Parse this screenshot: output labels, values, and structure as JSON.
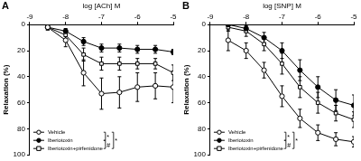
{
  "chart_data": [
    {
      "type": "line",
      "title": "A",
      "x_label": "log [ACh] M",
      "y_label": "Relaxation (%)",
      "x": [
        -8.5,
        -8,
        -7.5,
        -7,
        -6.5,
        -6,
        -5.5,
        -5
      ],
      "xlim": [
        -9,
        -5
      ],
      "xticks": [
        -9,
        -8,
        -7,
        -6,
        -5
      ],
      "ylim": [
        100,
        0
      ],
      "yticks": [
        0,
        20,
        40,
        60,
        80,
        100
      ],
      "grid": false,
      "legend": "bottom left",
      "series": [
        {
          "name": "Vehicle",
          "color": "#000000",
          "marker": "circle_open",
          "values": [
            2,
            12,
            37,
            53,
            52,
            48,
            47,
            48
          ],
          "errors": [
            2,
            5,
            10,
            12,
            12,
            11,
            10,
            12
          ]
        },
        {
          "name": "Iberiotoxin",
          "color": "#000000",
          "marker": "circle",
          "values": [
            2,
            5,
            13,
            18,
            18,
            19,
            19,
            21
          ],
          "errors": [
            2,
            2,
            3,
            3,
            3,
            3,
            3,
            2
          ]
        },
        {
          "name": "Iberiotoxin+pirfenidone",
          "color": "#000000",
          "marker": "square_open",
          "values": [
            2,
            8,
            23,
            30,
            30,
            30,
            30,
            37
          ],
          "errors": [
            2,
            3,
            5,
            5,
            5,
            4,
            4,
            6
          ]
        }
      ],
      "significance": [
        {
          "between": [
            "Vehicle",
            "Iberiotoxin"
          ],
          "text": "*"
        },
        {
          "between": [
            "Iberiotoxin",
            "Iberiotoxin+pirfenidone"
          ],
          "text": "#"
        },
        {
          "between": [
            "Vehicle",
            "Iberiotoxin+pirfenidone"
          ],
          "text": "*"
        }
      ]
    },
    {
      "type": "line",
      "title": "B",
      "x_label": "log [SNP] M",
      "y_label": "Relaxation (%)",
      "x": [
        -8.5,
        -8,
        -7.5,
        -7,
        -6.5,
        -6,
        -5.5,
        -5
      ],
      "xlim": [
        -9,
        -5
      ],
      "xticks": [
        -9,
        -8,
        -7,
        -6,
        -5
      ],
      "ylim": [
        100,
        0
      ],
      "yticks": [
        0,
        20,
        40,
        60,
        80,
        100
      ],
      "grid": false,
      "legend": "bottom left",
      "series": [
        {
          "name": "Vehicle",
          "color": "#000000",
          "marker": "circle_open",
          "values": [
            12,
            20,
            35,
            55,
            72,
            83,
            88,
            90
          ],
          "errors": [
            8,
            6,
            6,
            8,
            7,
            6,
            5,
            4
          ]
        },
        {
          "name": "Iberiotoxin",
          "color": "#000000",
          "marker": "circle",
          "values": [
            0,
            3,
            10,
            20,
            35,
            48,
            58,
            62
          ],
          "errors": [
            3,
            3,
            4,
            6,
            8,
            8,
            8,
            8
          ]
        },
        {
          "name": "Iberiotoxin+pirfenidone",
          "color": "#000000",
          "marker": "square_open",
          "values": [
            2,
            5,
            15,
            30,
            48,
            60,
            68,
            73
          ],
          "errors": [
            3,
            4,
            5,
            8,
            8,
            8,
            6,
            6
          ]
        }
      ],
      "significance": [
        {
          "between": [
            "Vehicle",
            "Iberiotoxin"
          ],
          "text": "*"
        },
        {
          "between": [
            "Iberiotoxin",
            "Iberiotoxin+pirfenidone"
          ],
          "text": "#"
        },
        {
          "between": [
            "Vehicle",
            "Iberiotoxin+pirfenidone"
          ],
          "text": "*"
        }
      ]
    }
  ]
}
